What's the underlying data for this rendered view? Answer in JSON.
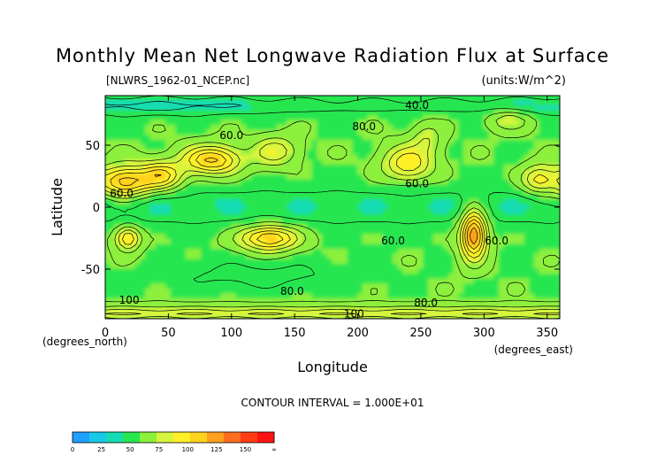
{
  "chart_data": {
    "type": "heatmap",
    "title": "Monthly Mean Net Longwave Radiation Flux at Surface",
    "file_label": "[NLWRS_1962-01_NCEP.nc]",
    "units_label": "(units:W/m^2)",
    "xlabel": "Longitude",
    "xunits": "(degrees_east)",
    "ylabel": "Latitude",
    "yunits": "(degrees_north)",
    "xlim": [
      0,
      360
    ],
    "ylim": [
      -90,
      90
    ],
    "xticks": [
      0,
      50,
      100,
      150,
      200,
      250,
      300,
      350
    ],
    "yticks": [
      50,
      0,
      -50
    ],
    "contour_interval_text": "CONTOUR INTERVAL = 1.000E+01",
    "contour_labels": [
      {
        "text": "40.0",
        "x": 247,
        "y": 82
      },
      {
        "text": "60.0",
        "x": 100,
        "y": 58
      },
      {
        "text": "80.0",
        "x": 205,
        "y": 65
      },
      {
        "text": "60.0",
        "x": 247,
        "y": 19
      },
      {
        "text": "60.0",
        "x": 13,
        "y": 11
      },
      {
        "text": "60.0",
        "x": 228,
        "y": -27
      },
      {
        "text": "60.0",
        "x": 310,
        "y": -27
      },
      {
        "text": "80.0",
        "x": 148,
        "y": -68
      },
      {
        "text": "100",
        "x": 19,
        "y": -75
      },
      {
        "text": "80.0",
        "x": 254,
        "y": -77
      },
      {
        "text": "100",
        "x": 197,
        "y": -86
      }
    ],
    "colorbar": {
      "ticks": [
        "0",
        "25",
        "50",
        "75",
        "100",
        "125",
        "150",
        "∞"
      ],
      "colors": [
        "#1ea0ff",
        "#19c8e6",
        "#14dcb4",
        "#28e650",
        "#8cf03c",
        "#d7f53c",
        "#fff028",
        "#ffd21e",
        "#ffa01e",
        "#ff6e1e",
        "#ff3c14",
        "#ff1414"
      ]
    },
    "value_range": [
      0,
      175
    ],
    "grid": false
  }
}
